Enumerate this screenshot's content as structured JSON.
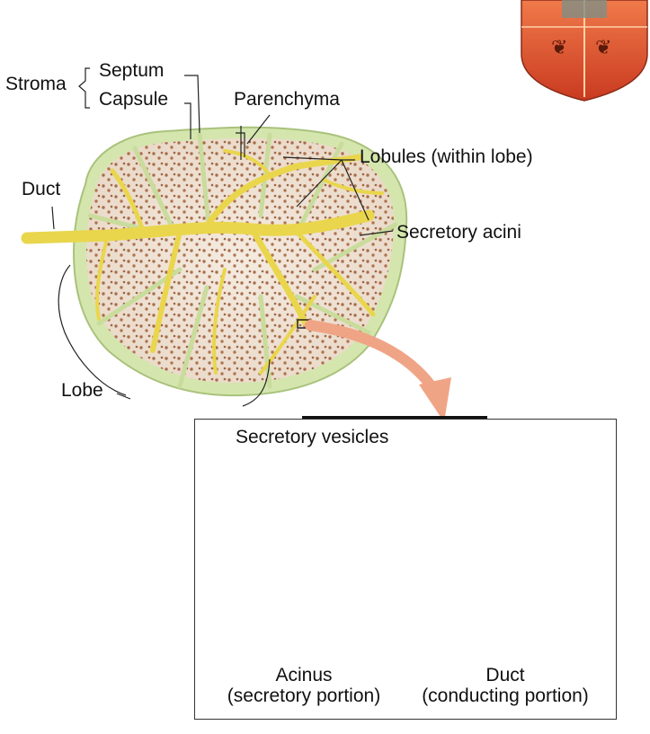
{
  "labels": {
    "stroma": "Stroma",
    "septum": "Septum",
    "capsule": "Capsule",
    "parenchyma": "Parenchyma",
    "lobules": "Lobules (within lobe)",
    "duct": "Duct",
    "secretory_acini": "Secretory acini",
    "lobe": "Lobe"
  },
  "inset": {
    "secretory_vesicles": "Secretory vesicles",
    "acinus_title": "Acinus",
    "acinus_sub": "(secretory portion)",
    "duct_title": "Duct",
    "duct_sub": "(conducting portion)"
  },
  "colors": {
    "capsule_fill": "#d9e8b5",
    "lobule_fill": "#efe3d6",
    "duct_yellow": "#e9d64c",
    "acinus_orange": "#e8622a",
    "arrow_salmon": "#f0a486",
    "emblem_red": "#d4452a"
  },
  "icons": {
    "emblem": "crest-emblem-icon"
  }
}
